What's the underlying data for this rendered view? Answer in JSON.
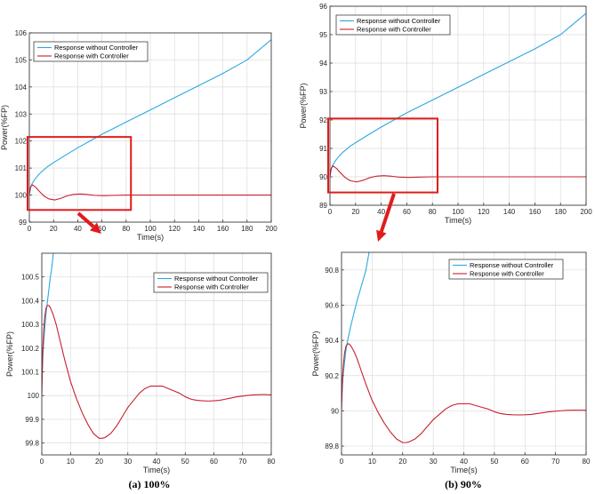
{
  "chart_data": [
    {
      "type": "line",
      "id": "a-top",
      "xlabel": "Time(s)",
      "ylabel": "Power(%FP)",
      "xlim": [
        0,
        200
      ],
      "ylim": [
        99,
        106
      ],
      "xticks": [
        0,
        20,
        40,
        60,
        80,
        100,
        120,
        140,
        160,
        180,
        200
      ],
      "yticks": [
        99,
        100,
        101,
        102,
        103,
        104,
        105,
        106
      ],
      "legend_position": "top-left",
      "series": [
        {
          "name": "Response without Controller",
          "color": "#2ea7e0",
          "x": [
            0,
            1,
            2,
            4,
            7,
            10,
            15,
            20,
            30,
            40,
            50,
            60,
            80,
            100,
            120,
            140,
            160,
            180,
            200
          ],
          "y": [
            100.05,
            100.28,
            100.4,
            100.55,
            100.72,
            100.86,
            101.05,
            101.2,
            101.48,
            101.75,
            102.0,
            102.25,
            102.7,
            103.15,
            103.6,
            104.05,
            104.5,
            105.0,
            105.75
          ]
        },
        {
          "name": "Response with Controller",
          "color": "#c8202f",
          "x": [
            0,
            1,
            2.5,
            5,
            8,
            12,
            16,
            21,
            26,
            31,
            36,
            42,
            48,
            54,
            62,
            70,
            80,
            100,
            200
          ],
          "y": [
            100.0,
            100.3,
            100.38,
            100.3,
            100.15,
            99.97,
            99.86,
            99.82,
            99.88,
            99.97,
            100.02,
            100.04,
            100.02,
            99.99,
            99.98,
            99.99,
            100.0,
            100.0,
            100.0
          ]
        }
      ]
    },
    {
      "type": "line",
      "id": "b-top",
      "xlabel": "Time(s)",
      "ylabel": "Power(%FP)",
      "xlim": [
        0,
        200
      ],
      "ylim": [
        89,
        96
      ],
      "xticks": [
        0,
        20,
        40,
        60,
        80,
        100,
        120,
        140,
        160,
        180,
        200
      ],
      "yticks": [
        89,
        90,
        91,
        92,
        93,
        94,
        95,
        96
      ],
      "legend_position": "top-left",
      "series": [
        {
          "name": "Response without Controller",
          "color": "#2ea7e0",
          "x": [
            0,
            1,
            2,
            4,
            7,
            10,
            15,
            20,
            30,
            40,
            50,
            60,
            80,
            100,
            120,
            140,
            160,
            180,
            200
          ],
          "y": [
            90.05,
            90.28,
            90.4,
            90.55,
            90.72,
            90.86,
            91.05,
            91.2,
            91.48,
            91.75,
            92.0,
            92.25,
            92.7,
            93.15,
            93.6,
            94.05,
            94.5,
            95.0,
            95.75
          ]
        },
        {
          "name": "Response with Controller",
          "color": "#c8202f",
          "x": [
            0,
            1,
            2.5,
            5,
            8,
            12,
            16,
            21,
            26,
            31,
            36,
            42,
            48,
            54,
            62,
            70,
            80,
            100,
            200
          ],
          "y": [
            90.0,
            90.3,
            90.38,
            90.3,
            90.15,
            89.97,
            89.86,
            89.82,
            89.88,
            89.97,
            90.02,
            90.04,
            90.02,
            89.99,
            89.98,
            89.99,
            90.0,
            90.0,
            90.0
          ]
        }
      ]
    },
    {
      "type": "line",
      "id": "a-bottom",
      "xlabel": "Time(s)",
      "ylabel": "Power(%FP)",
      "xlim": [
        0,
        80
      ],
      "ylim": [
        99.75,
        100.6
      ],
      "xticks": [
        0,
        10,
        20,
        30,
        40,
        50,
        60,
        70,
        80
      ],
      "yticks": [
        99.8,
        99.9,
        100,
        100.1,
        100.2,
        100.3,
        100.4,
        100.5
      ],
      "legend_position": "top-right",
      "series": [
        {
          "name": "Response without Controller",
          "color": "#2ea7e0",
          "x": [
            0,
            0.5,
            1,
            1.5,
            2,
            2.5,
            3,
            3.5,
            4
          ],
          "y": [
            100.05,
            100.2,
            100.28,
            100.35,
            100.4,
            100.45,
            100.5,
            100.54,
            100.6
          ]
        },
        {
          "name": "Response with Controller",
          "color": "#c8202f",
          "x": [
            0,
            0.3,
            0.7,
            1,
            1.5,
            2,
            2.5,
            3,
            4,
            5,
            6,
            8,
            10,
            12,
            14,
            16,
            18,
            20,
            21,
            22,
            24,
            26,
            28,
            30,
            32,
            34,
            36,
            38,
            40,
            42,
            44,
            46,
            48,
            50,
            52,
            54,
            56,
            58,
            60,
            62,
            64,
            66,
            68,
            70,
            72,
            74,
            76,
            78,
            80
          ],
          "y": [
            100.0,
            100.18,
            100.28,
            100.33,
            100.37,
            100.38,
            100.38,
            100.37,
            100.34,
            100.3,
            100.25,
            100.15,
            100.06,
            99.99,
            99.93,
            99.88,
            99.84,
            99.82,
            99.82,
            99.823,
            99.84,
            99.87,
            99.91,
            99.95,
            99.98,
            100.01,
            100.03,
            100.04,
            100.04,
            100.04,
            100.03,
            100.02,
            100.01,
            99.995,
            99.985,
            99.98,
            99.978,
            99.977,
            99.978,
            99.98,
            99.985,
            99.99,
            99.995,
            99.998,
            100.001,
            100.003,
            100.004,
            100.004,
            100.003
          ]
        }
      ]
    },
    {
      "type": "line",
      "id": "b-bottom",
      "xlabel": "Time(s)",
      "ylabel": "Power(%FP)",
      "xlim": [
        0,
        80
      ],
      "ylim": [
        89.75,
        90.9
      ],
      "xticks": [
        0,
        10,
        20,
        30,
        40,
        50,
        60,
        70,
        80
      ],
      "yticks": [
        89.8,
        90,
        90.2,
        90.4,
        90.6,
        90.8
      ],
      "legend_position": "top-right",
      "series": [
        {
          "name": "Response without Controller",
          "color": "#2ea7e0",
          "x": [
            0,
            0.5,
            1,
            1.5,
            2,
            3,
            4,
            5,
            6,
            7,
            8,
            9
          ],
          "y": [
            90.05,
            90.2,
            90.28,
            90.35,
            90.4,
            90.48,
            90.55,
            90.62,
            90.68,
            90.74,
            90.8,
            90.9
          ]
        },
        {
          "name": "Response with Controller",
          "color": "#c8202f",
          "x": [
            0,
            0.3,
            0.7,
            1,
            1.5,
            2,
            2.5,
            3,
            4,
            5,
            6,
            8,
            10,
            12,
            14,
            16,
            18,
            20,
            21,
            22,
            24,
            26,
            28,
            30,
            32,
            34,
            36,
            38,
            40,
            42,
            44,
            46,
            48,
            50,
            52,
            54,
            56,
            58,
            60,
            62,
            64,
            66,
            68,
            70,
            72,
            74,
            76,
            78,
            80
          ],
          "y": [
            90.0,
            90.18,
            90.28,
            90.33,
            90.37,
            90.38,
            90.38,
            90.37,
            90.34,
            90.3,
            90.25,
            90.15,
            90.06,
            89.99,
            89.93,
            89.88,
            89.84,
            89.82,
            89.82,
            89.823,
            89.84,
            89.87,
            89.91,
            89.95,
            89.98,
            90.01,
            90.03,
            90.04,
            90.04,
            90.04,
            90.03,
            90.02,
            90.01,
            89.995,
            89.985,
            89.98,
            89.978,
            89.977,
            89.978,
            89.98,
            89.985,
            89.99,
            89.995,
            89.998,
            90.001,
            90.003,
            90.004,
            90.004,
            90.003
          ]
        }
      ]
    }
  ],
  "zoom_regions": [
    {
      "panel": "a-top",
      "x": [
        0,
        84
      ],
      "y": [
        99.45,
        102.15
      ]
    },
    {
      "panel": "b-top",
      "x": [
        0,
        84
      ],
      "y": [
        89.45,
        92.05
      ]
    }
  ],
  "captions": {
    "a": "(a) 100%",
    "b": "(b) 90%"
  },
  "annotation_color": "#e01b1b"
}
